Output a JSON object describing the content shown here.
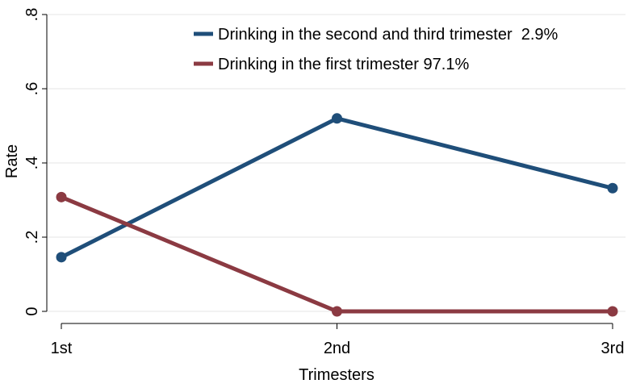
{
  "chart_data": {
    "type": "line",
    "title": "",
    "xlabel": "Trimesters",
    "ylabel": "Rate",
    "categories": [
      "1st",
      "2nd",
      "3rd"
    ],
    "y_ticks": [
      0,
      0.2,
      0.4,
      0.6,
      0.8
    ],
    "y_tick_labels": [
      "0",
      ".2",
      ".4",
      ".6",
      ".8"
    ],
    "ylim": [
      0,
      0.8
    ],
    "grid": true,
    "legend_position": "top-right",
    "series": [
      {
        "name": "Drinking in the second and third trimester  2.9%",
        "values": [
          0.146,
          0.52,
          0.332
        ],
        "color": "#1f4e79"
      },
      {
        "name": "Drinking in the first trimester 97.1%",
        "values": [
          0.308,
          0.0,
          0.0
        ],
        "color": "#8b3a42"
      }
    ]
  }
}
